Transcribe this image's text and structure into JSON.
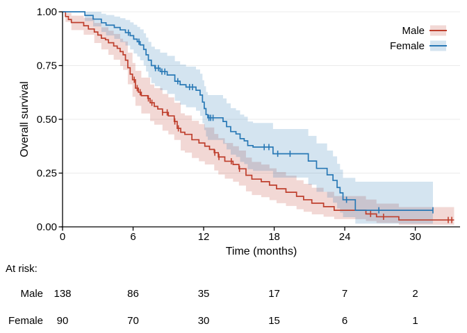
{
  "chart_data": {
    "type": "line",
    "variant": "kaplan-meier-step",
    "title": "",
    "xlabel": "Time (months)",
    "ylabel": "Overall survival",
    "x_ticks": [
      0,
      6,
      12,
      18,
      24,
      30
    ],
    "x_tick_labels": [
      "0",
      "6",
      "12",
      "18",
      "24",
      "30"
    ],
    "y_ticks": [
      0,
      0.25,
      0.5,
      0.75,
      1
    ],
    "y_tick_labels": [
      "0.00",
      "0.25",
      "0.50",
      "0.75",
      "1.00"
    ],
    "xlim": [
      0,
      33.8
    ],
    "ylim": [
      0,
      1
    ],
    "grid": "horizontal-only",
    "grid_color": "#ebebeb",
    "axis_color": "#000000",
    "legend_position": "top-right",
    "band_opacity": 0.2,
    "series": [
      {
        "name": "Male",
        "color": "#be3e2c",
        "steps": [
          [
            0,
            1
          ],
          [
            0.25,
            0.978
          ],
          [
            0.5,
            0.964
          ],
          [
            0.75,
            0.95
          ],
          [
            1.8,
            0.935
          ],
          [
            2.2,
            0.92
          ],
          [
            2.7,
            0.906
          ],
          [
            3,
            0.892
          ],
          [
            3.3,
            0.877
          ],
          [
            3.65,
            0.87
          ],
          [
            3.9,
            0.856
          ],
          [
            4.35,
            0.841
          ],
          [
            4.65,
            0.83
          ],
          [
            4.9,
            0.815
          ],
          [
            5.15,
            0.8
          ],
          [
            5.35,
            0.775
          ],
          [
            5.55,
            0.74
          ],
          [
            5.75,
            0.71
          ],
          [
            5.95,
            0.684
          ],
          [
            6.2,
            0.645
          ],
          [
            6.45,
            0.626
          ],
          [
            6.7,
            0.61
          ],
          [
            7.25,
            0.597
          ],
          [
            7.45,
            0.577
          ],
          [
            7.8,
            0.56
          ],
          [
            8.1,
            0.548
          ],
          [
            8.5,
            0.532
          ],
          [
            9,
            0.516
          ],
          [
            9.5,
            0.49
          ],
          [
            9.75,
            0.458
          ],
          [
            10.05,
            0.44
          ],
          [
            10.4,
            0.43
          ],
          [
            11,
            0.405
          ],
          [
            11.6,
            0.39
          ],
          [
            12.1,
            0.375
          ],
          [
            12.5,
            0.36
          ],
          [
            12.9,
            0.345
          ],
          [
            13.25,
            0.325
          ],
          [
            13.8,
            0.305
          ],
          [
            14.5,
            0.29
          ],
          [
            15,
            0.27
          ],
          [
            15.6,
            0.24
          ],
          [
            16.1,
            0.222
          ],
          [
            16.9,
            0.21
          ],
          [
            17.6,
            0.194
          ],
          [
            18.2,
            0.177
          ],
          [
            19,
            0.161
          ],
          [
            19.9,
            0.142
          ],
          [
            20.5,
            0.126
          ],
          [
            21.2,
            0.11
          ],
          [
            22.2,
            0.094
          ],
          [
            23.1,
            0.077
          ],
          [
            25.8,
            0.06
          ],
          [
            26.7,
            0.047
          ],
          [
            28.6,
            0.032
          ],
          [
            33.3,
            0.032
          ]
        ],
        "censors": [
          6.1,
          6.35,
          6.6,
          7.3,
          7.6,
          8.5,
          8.9,
          9.55,
          9.85,
          12.95,
          13.3,
          14.35,
          15.05,
          26.2,
          27.3,
          32.8,
          33.1
        ],
        "ci": [
          [
            0,
            1,
            1
          ],
          [
            0.25,
            0.953,
            0.995
          ],
          [
            0.75,
            0.915,
            0.982
          ],
          [
            1.8,
            0.893,
            0.972
          ],
          [
            2.7,
            0.855,
            0.948
          ],
          [
            3.3,
            0.825,
            0.928
          ],
          [
            3.9,
            0.8,
            0.912
          ],
          [
            4.35,
            0.777,
            0.897
          ],
          [
            4.9,
            0.748,
            0.875
          ],
          [
            5.15,
            0.73,
            0.862
          ],
          [
            5.55,
            0.663,
            0.81
          ],
          [
            5.95,
            0.605,
            0.762
          ],
          [
            6.2,
            0.563,
            0.726
          ],
          [
            6.7,
            0.527,
            0.694
          ],
          [
            7.45,
            0.492,
            0.662
          ],
          [
            7.8,
            0.475,
            0.645
          ],
          [
            8.5,
            0.447,
            0.618
          ],
          [
            9,
            0.43,
            0.602
          ],
          [
            9.5,
            0.404,
            0.577
          ],
          [
            10.05,
            0.355,
            0.528
          ],
          [
            10.4,
            0.345,
            0.518
          ],
          [
            11,
            0.32,
            0.493
          ],
          [
            11.6,
            0.305,
            0.478
          ],
          [
            12.1,
            0.29,
            0.462
          ],
          [
            12.9,
            0.262,
            0.432
          ],
          [
            13.25,
            0.243,
            0.412
          ],
          [
            13.8,
            0.224,
            0.39
          ],
          [
            14.5,
            0.21,
            0.375
          ],
          [
            15,
            0.192,
            0.355
          ],
          [
            15.6,
            0.165,
            0.322
          ],
          [
            16.1,
            0.148,
            0.302
          ],
          [
            16.9,
            0.138,
            0.29
          ],
          [
            17.6,
            0.124,
            0.272
          ],
          [
            18.2,
            0.11,
            0.255
          ],
          [
            19,
            0.097,
            0.238
          ],
          [
            19.9,
            0.082,
            0.217
          ],
          [
            20.5,
            0.07,
            0.2
          ],
          [
            21.2,
            0.058,
            0.182
          ],
          [
            22.2,
            0.047,
            0.163
          ],
          [
            23.1,
            0.036,
            0.143
          ],
          [
            25.8,
            0.027,
            0.127
          ],
          [
            26.7,
            0.018,
            0.108
          ],
          [
            28.6,
            0.01,
            0.092
          ],
          [
            33.3,
            0.01,
            0.092
          ]
        ]
      },
      {
        "name": "Female",
        "color": "#2878b5",
        "steps": [
          [
            0,
            1
          ],
          [
            1.9,
            0.983
          ],
          [
            2.6,
            0.966
          ],
          [
            3.3,
            0.949
          ],
          [
            3.7,
            0.938
          ],
          [
            4.4,
            0.927
          ],
          [
            4.9,
            0.916
          ],
          [
            5.35,
            0.903
          ],
          [
            5.75,
            0.889
          ],
          [
            6.05,
            0.873
          ],
          [
            6.35,
            0.861
          ],
          [
            6.6,
            0.846
          ],
          [
            6.9,
            0.825
          ],
          [
            7.1,
            0.8
          ],
          [
            7.3,
            0.775
          ],
          [
            7.55,
            0.75
          ],
          [
            7.85,
            0.738
          ],
          [
            8.3,
            0.722
          ],
          [
            8.9,
            0.706
          ],
          [
            9.55,
            0.677
          ],
          [
            10,
            0.661
          ],
          [
            10.5,
            0.65
          ],
          [
            11.35,
            0.635
          ],
          [
            11.7,
            0.613
          ],
          [
            11.9,
            0.58
          ],
          [
            12.05,
            0.55
          ],
          [
            12.2,
            0.522
          ],
          [
            12.35,
            0.507
          ],
          [
            13.65,
            0.49
          ],
          [
            13.95,
            0.466
          ],
          [
            14.3,
            0.443
          ],
          [
            14.75,
            0.432
          ],
          [
            15.1,
            0.41
          ],
          [
            15.45,
            0.4
          ],
          [
            15.75,
            0.378
          ],
          [
            16.2,
            0.371
          ],
          [
            17.9,
            0.34
          ],
          [
            20.9,
            0.306
          ],
          [
            21.6,
            0.272
          ],
          [
            22.5,
            0.242
          ],
          [
            23,
            0.216
          ],
          [
            23.35,
            0.183
          ],
          [
            23.6,
            0.158
          ],
          [
            23.85,
            0.126
          ],
          [
            24.9,
            0.077
          ],
          [
            31.5,
            0.077
          ]
        ],
        "censors": [
          5.6,
          6.5,
          7.9,
          8.15,
          8.45,
          8.7,
          9.8,
          10.8,
          11.05,
          12.45,
          12.6,
          12.8,
          17.15,
          17.55,
          18.3,
          19.35,
          24.15,
          26.9,
          31.5
        ],
        "ci": [
          [
            0,
            1,
            1
          ],
          [
            1.9,
            0.957,
            1
          ],
          [
            2.6,
            0.932,
            1
          ],
          [
            3.3,
            0.906,
            0.991
          ],
          [
            3.7,
            0.89,
            0.985
          ],
          [
            4.4,
            0.874,
            0.978
          ],
          [
            4.9,
            0.859,
            0.97
          ],
          [
            5.35,
            0.843,
            0.962
          ],
          [
            5.75,
            0.825,
            0.951
          ],
          [
            6.05,
            0.806,
            0.94
          ],
          [
            6.35,
            0.792,
            0.93
          ],
          [
            6.6,
            0.774,
            0.918
          ],
          [
            6.9,
            0.75,
            0.9
          ],
          [
            7.1,
            0.722,
            0.88
          ],
          [
            7.3,
            0.695,
            0.86
          ],
          [
            7.55,
            0.668,
            0.838
          ],
          [
            7.85,
            0.654,
            0.826
          ],
          [
            8.3,
            0.636,
            0.81
          ],
          [
            8.9,
            0.618,
            0.795
          ],
          [
            9.55,
            0.586,
            0.77
          ],
          [
            10,
            0.568,
            0.755
          ],
          [
            10.5,
            0.556,
            0.745
          ],
          [
            11.35,
            0.54,
            0.732
          ],
          [
            11.7,
            0.516,
            0.712
          ],
          [
            11.9,
            0.482,
            0.682
          ],
          [
            12.05,
            0.45,
            0.654
          ],
          [
            12.2,
            0.42,
            0.627
          ],
          [
            12.35,
            0.404,
            0.613
          ],
          [
            13.65,
            0.386,
            0.597
          ],
          [
            13.95,
            0.36,
            0.574
          ],
          [
            14.3,
            0.336,
            0.552
          ],
          [
            14.75,
            0.325,
            0.542
          ],
          [
            15.1,
            0.302,
            0.522
          ],
          [
            15.45,
            0.292,
            0.512
          ],
          [
            15.75,
            0.268,
            0.49
          ],
          [
            16.2,
            0.26,
            0.483
          ],
          [
            17.9,
            0.229,
            0.455
          ],
          [
            20.9,
            0.196,
            0.423
          ],
          [
            21.6,
            0.163,
            0.388
          ],
          [
            22.5,
            0.136,
            0.355
          ],
          [
            23,
            0.112,
            0.328
          ],
          [
            23.35,
            0.086,
            0.293
          ],
          [
            23.6,
            0.066,
            0.266
          ],
          [
            23.85,
            0.045,
            0.228
          ],
          [
            24.9,
            0.015,
            0.21
          ],
          [
            31.5,
            0.015,
            0.21
          ]
        ]
      }
    ],
    "risk_table": {
      "label": "At risk:",
      "times": [
        0,
        6,
        12,
        18,
        24,
        30
      ],
      "rows": [
        {
          "name": "Male",
          "counts": [
            "138",
            "86",
            "35",
            "17",
            "7",
            "2"
          ]
        },
        {
          "name": "Female",
          "counts": [
            "90",
            "70",
            "30",
            "15",
            "6",
            "1"
          ]
        }
      ]
    }
  }
}
